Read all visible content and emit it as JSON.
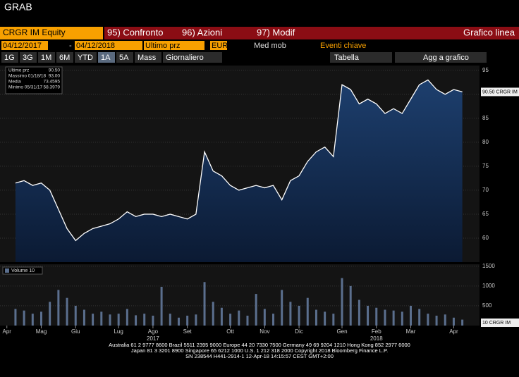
{
  "app": {
    "title": "GRAB",
    "row1": {
      "ticker": "CRGR IM Equity",
      "buttons": [
        "95) Confronto",
        "96) Azioni",
        "97) Modif"
      ],
      "mode": "Grafico linea"
    },
    "row2": {
      "from": "04/12/2017",
      "dash": "-",
      "to": "04/12/2018",
      "field": "Ultimo prz",
      "currency": "EUR",
      "ma": "Med mob",
      "events": "Eventi chiave"
    },
    "row3": {
      "periods": [
        "1G",
        "3G",
        "1M",
        "6M",
        "YTD",
        "1A",
        "5A",
        "Mass"
      ],
      "freq": "Giornaliero",
      "table": "Tabella",
      "add": "Agg a grafico"
    },
    "footer": [
      "Australia 61 2 9777 8600 Brazil 5511 2395 9000 Europe 44 20 7330 7500 Germany 49 69 9204 1210 Hong Kong 852 2977 6000",
      "Japan 81 3 3201 8900       Singapore 65 6212 1000        U.S. 1 212 318 2000              Copyright 2018 Bloomberg Finance L.P.",
      "SN 238544 H441-2914-1 12-Apr-18 14:15:57 CEST GMT+2:00"
    ]
  },
  "chart_data": [
    {
      "type": "line",
      "color": "#ffffff",
      "grid": true,
      "legend": [
        [
          "Ultimo prz",
          "90.50"
        ],
        [
          "Massimo 01/18/18",
          "93.00"
        ],
        [
          "Media",
          "73.4595"
        ],
        [
          "Minimo 05/31/17",
          "58.3979"
        ]
      ],
      "last_label": "90.50 CRGR IM",
      "values": [
        71.5,
        72,
        71,
        71.5,
        70,
        66,
        62,
        59.5,
        61,
        62,
        62.5,
        63,
        64,
        65.5,
        64.5,
        65,
        65,
        64.5,
        65,
        64.5,
        64,
        65,
        78,
        74,
        73,
        71,
        70,
        70.5,
        71,
        70.5,
        71,
        68,
        72,
        73,
        76,
        78,
        79,
        77,
        92,
        91,
        88,
        89,
        88,
        86,
        87,
        86,
        89,
        92,
        93,
        91,
        90,
        91,
        90.5
      ],
      "xlim": [
        -1.8,
        54
      ],
      "ylim": [
        55,
        96
      ],
      "yticks": [
        60,
        65,
        70,
        75,
        80,
        85,
        90,
        95
      ]
    },
    {
      "type": "bar",
      "color": "#5b6f8e",
      "grid": true,
      "legend": "Volume 10",
      "last_label": "10 CRGR IM",
      "values": [
        420,
        380,
        300,
        350,
        600,
        900,
        700,
        500,
        400,
        300,
        350,
        280,
        300,
        420,
        260,
        300,
        250,
        980,
        300,
        200,
        250,
        280,
        1100,
        600,
        450,
        300,
        380,
        250,
        800,
        420,
        300,
        900,
        600,
        500,
        700,
        400,
        350,
        300,
        1200,
        1000,
        650,
        500,
        450,
        400,
        380,
        350,
        500,
        420,
        300,
        250,
        280,
        200,
        150
      ],
      "xlim": [
        -1.8,
        54
      ],
      "ylim": [
        0,
        1550
      ],
      "yticks": [
        500,
        1000,
        1500
      ],
      "xticks": [
        {
          "value": -1,
          "label": "Apr"
        },
        {
          "value": 3,
          "label": "Mag"
        },
        {
          "value": 7,
          "label": "Giu"
        },
        {
          "value": 12,
          "label": "Lug"
        },
        {
          "value": 16,
          "label": "Ago"
        },
        {
          "value": 20,
          "label": "Set"
        },
        {
          "value": 25,
          "label": "Ott"
        },
        {
          "value": 29,
          "label": "Nov"
        },
        {
          "value": 33,
          "label": "Dic"
        },
        {
          "value": 38,
          "label": "Gen"
        },
        {
          "value": 42,
          "label": "Feb"
        },
        {
          "value": 46,
          "label": "Mar"
        },
        {
          "value": 51,
          "label": "Apr"
        }
      ],
      "years": [
        {
          "value": 16,
          "label": "2017"
        },
        {
          "value": 42,
          "label": "2018"
        }
      ]
    }
  ]
}
